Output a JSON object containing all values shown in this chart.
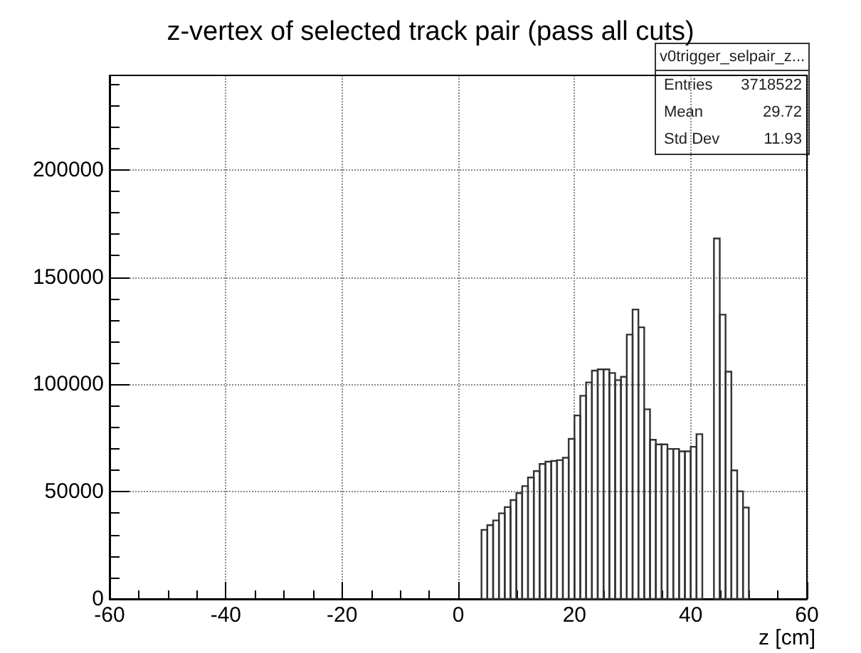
{
  "chart_data": {
    "type": "histogram",
    "title": "z-vertex of selected track pair (pass all cuts)",
    "xlabel": "z [cm]",
    "bins": [
      4,
      5,
      6,
      7,
      8,
      9,
      10,
      11,
      12,
      13,
      14,
      15,
      16,
      17,
      18,
      19,
      20,
      21,
      22,
      23,
      24,
      25,
      26,
      27,
      28,
      29,
      30,
      31,
      32,
      33,
      34,
      35,
      36,
      37,
      38,
      39,
      40,
      41,
      42,
      43,
      44,
      45,
      46,
      47,
      48,
      49,
      50
    ],
    "values": [
      32200,
      34400,
      36600,
      39900,
      42800,
      46100,
      49300,
      52600,
      56600,
      59600,
      62900,
      64000,
      64300,
      64700,
      65800,
      74600,
      85500,
      94700,
      100900,
      106400,
      107000,
      107000,
      105300,
      102000,
      103500,
      123200,
      134900,
      126600,
      88400,
      74200,
      72000,
      72000,
      69900,
      69900,
      68800,
      68800,
      70900,
      76800,
      null,
      null,
      168000,
      132500,
      105900,
      59900,
      50200,
      42600
    ],
    "color": "#333333",
    "xlim": [
      -60,
      60
    ],
    "xticks": [
      -60,
      -40,
      -20,
      0,
      20,
      40,
      60
    ],
    "ylim": [
      0,
      244000
    ],
    "yticks": [
      0,
      50000,
      100000,
      150000,
      200000
    ],
    "grid": true,
    "annotations": [
      "v0trigger_selpair_z...",
      "Entries",
      "3718522",
      "Mean",
      "29.72",
      "Std Dev",
      "11.93"
    ]
  }
}
